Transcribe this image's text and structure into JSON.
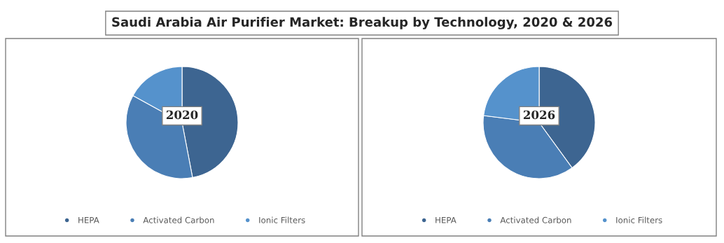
{
  "chart_data": [
    {
      "type": "pie",
      "title": "Saudi Arabia Air Purifier Market: Breakup by Technology, 2020 & 2026",
      "subtitle": "2020",
      "categories": [
        "HEPA",
        "Activated Carbon",
        "Ionic Filters"
      ],
      "values": [
        47,
        36,
        17
      ],
      "colors": [
        "#3d6591",
        "#4a7eb5",
        "#5592cc"
      ],
      "legend": "bottom"
    },
    {
      "type": "pie",
      "subtitle": "2026",
      "categories": [
        "HEPA",
        "Activated Carbon",
        "Ionic Filters"
      ],
      "values": [
        40,
        37,
        23
      ],
      "colors": [
        "#3d6591",
        "#4a7eb5",
        "#5592cc"
      ],
      "legend": "bottom"
    }
  ]
}
